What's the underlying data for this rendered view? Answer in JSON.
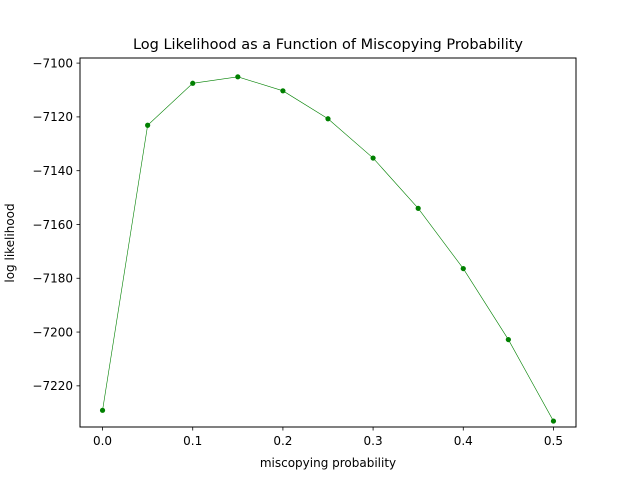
{
  "chart_data": {
    "type": "line",
    "title": "Log Likelihood as a Function of Miscopying Probability",
    "xlabel": "miscopying probability",
    "ylabel": "log likelihood",
    "xlim": [
      -0.025,
      0.525
    ],
    "ylim": [
      -7235.3,
      -7098.1
    ],
    "xticks": [
      0.0,
      0.1,
      0.2,
      0.3,
      0.4,
      0.5
    ],
    "xtick_labels": [
      "0.0",
      "0.1",
      "0.2",
      "0.3",
      "0.4",
      "0.5"
    ],
    "yticks": [
      -7100,
      -7120,
      -7140,
      -7160,
      -7180,
      -7200,
      -7220
    ],
    "ytick_labels": [
      "−7100",
      "−7120",
      "−7140",
      "−7160",
      "−7180",
      "−7200",
      "−7220"
    ],
    "grid": false,
    "series": [
      {
        "x": [
          0.0,
          0.05,
          0.1,
          0.15,
          0.2,
          0.25,
          0.3,
          0.35,
          0.4,
          0.45,
          0.5
        ],
        "y": [
          -7229.1,
          -7123.1,
          -7107.5,
          -7105.1,
          -7110.3,
          -7120.7,
          -7135.3,
          -7154.0,
          -7176.4,
          -7202.8,
          -7233.1
        ],
        "color": "#008000",
        "marker": "circle"
      }
    ]
  }
}
